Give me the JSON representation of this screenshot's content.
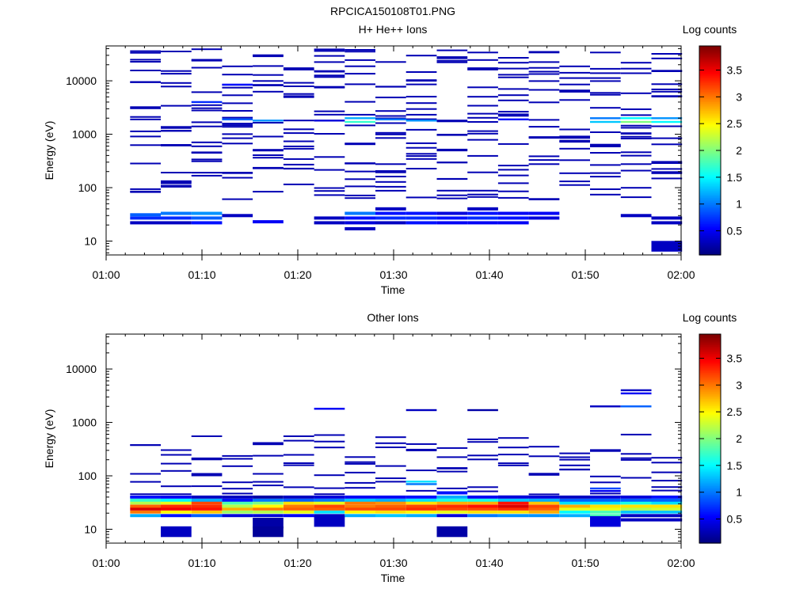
{
  "figure_title": "RPCICA150108T01.PNG",
  "chart_data": [
    {
      "type": "heatmap",
      "title": "H+ He++ Ions",
      "xlabel": "Time",
      "ylabel": "Energy (eV)",
      "xlim": [
        "01:00",
        "02:00"
      ],
      "x_ticks": [
        "01:00",
        "01:10",
        "01:20",
        "01:30",
        "01:40",
        "01:50",
        "02:00"
      ],
      "ylim": [
        5.5,
        45000
      ],
      "y_scale": "log",
      "y_ticks": [
        "10",
        "100",
        "1000",
        "10000"
      ],
      "colorbar": {
        "label": "Log counts",
        "range": [
          0.05,
          3.95
        ],
        "ticks": [
          "0.5",
          "1",
          "1.5",
          "2",
          "2.5",
          "3",
          "3.5"
        ],
        "colormap": "jet"
      },
      "time_columns_start_min": [
        2.5,
        5.7,
        8.9,
        12.1,
        15.3,
        18.5,
        21.7,
        24.9,
        28.1,
        31.3,
        34.5,
        37.7,
        40.9,
        44.1,
        47.3,
        50.5,
        53.7,
        56.9
      ],
      "column_width_min": 3.2,
      "cells": [
        [
          2.5,
          22,
          0.3
        ],
        [
          2.5,
          27,
          0.7
        ],
        [
          2.5,
          31,
          0.9
        ],
        [
          5.7,
          22,
          0.3
        ],
        [
          5.7,
          27,
          0.7
        ],
        [
          5.7,
          33,
          1.0
        ],
        [
          8.9,
          22,
          0.6
        ],
        [
          8.9,
          27,
          0.9
        ],
        [
          8.9,
          33,
          1.1
        ],
        [
          12.1,
          30,
          0.3
        ],
        [
          15.3,
          23,
          0.5
        ],
        [
          21.7,
          22,
          0.3
        ],
        [
          21.7,
          27,
          0.3
        ],
        [
          24.9,
          17,
          0.3
        ],
        [
          24.9,
          22,
          0.4
        ],
        [
          24.9,
          27,
          0.6
        ],
        [
          24.9,
          33,
          1.0
        ],
        [
          28.1,
          22,
          0.3
        ],
        [
          28.1,
          27,
          0.7
        ],
        [
          28.1,
          33,
          0.6
        ],
        [
          28.1,
          40,
          0.3
        ],
        [
          31.3,
          22,
          0.6
        ],
        [
          31.3,
          27,
          0.7
        ],
        [
          31.3,
          33,
          0.6
        ],
        [
          34.5,
          22,
          0.5
        ],
        [
          34.5,
          27,
          0.6
        ],
        [
          34.5,
          33,
          0.4
        ],
        [
          37.7,
          22,
          0.5
        ],
        [
          37.7,
          27,
          0.7
        ],
        [
          37.7,
          33,
          0.6
        ],
        [
          37.7,
          40,
          0.3
        ],
        [
          40.9,
          22,
          0.5
        ],
        [
          40.9,
          27,
          0.6
        ],
        [
          40.9,
          33,
          0.5
        ],
        [
          44.1,
          27,
          0.4
        ],
        [
          44.1,
          33,
          0.5
        ],
        [
          53.7,
          30,
          0.3
        ],
        [
          56.9,
          22,
          0.3
        ],
        [
          56.9,
          27,
          0.3
        ],
        [
          56.9,
          8,
          0.3
        ],
        [
          12.1,
          1900,
          0.9
        ],
        [
          15.3,
          1800,
          1.1
        ],
        [
          24.9,
          1700,
          1.7
        ],
        [
          24.9,
          2000,
          1.2
        ],
        [
          28.1,
          1900,
          1.0
        ],
        [
          31.3,
          1800,
          1.1
        ],
        [
          40.9,
          1900,
          0.6
        ],
        [
          50.5,
          1700,
          1.3
        ],
        [
          50.5,
          2000,
          1.0
        ],
        [
          53.7,
          1700,
          2.0
        ],
        [
          53.7,
          2000,
          1.5
        ],
        [
          56.9,
          1700,
          1.5
        ],
        [
          56.9,
          2000,
          1.1
        ],
        [
          8.9,
          4000,
          0.7
        ],
        [
          12.1,
          8500,
          0.6
        ],
        [
          21.7,
          1800,
          0.4
        ]
      ],
      "sparse_range_eV": [
        60,
        40000
      ],
      "sparse_value": 0.25
    },
    {
      "type": "heatmap",
      "title": "Other Ions",
      "xlabel": "Time",
      "ylabel": "Energy (eV)",
      "xlim": [
        "01:00",
        "02:00"
      ],
      "x_ticks": [
        "01:00",
        "01:10",
        "01:20",
        "01:30",
        "01:40",
        "01:50",
        "02:00"
      ],
      "ylim": [
        5.5,
        45000
      ],
      "y_scale": "log",
      "y_ticks": [
        "10",
        "100",
        "1000",
        "10000"
      ],
      "colorbar": {
        "label": "Log counts",
        "range": [
          0.05,
          3.95
        ],
        "ticks": [
          "0.5",
          "1",
          "1.5",
          "2",
          "2.5",
          "3",
          "3.5"
        ],
        "colormap": "jet"
      },
      "time_columns_start_min": [
        2.5,
        5.7,
        8.9,
        12.1,
        15.3,
        18.5,
        21.7,
        24.9,
        28.1,
        31.3,
        34.5,
        37.7,
        40.9,
        44.1,
        47.3,
        50.5,
        53.7,
        56.9
      ],
      "column_width_min": 3.2,
      "energy_bins_eV": [
        18,
        21,
        24,
        27,
        31,
        35,
        40
      ],
      "core_values": [
        [
          1.2,
          3.0,
          3.6,
          3.1,
          2.2,
          1.7,
          0.6
        ],
        [
          0.6,
          2.5,
          3.5,
          3.3,
          2.4,
          1.5,
          0.5
        ],
        [
          0.9,
          2.7,
          3.4,
          3.3,
          3.2,
          1.2,
          0.3
        ],
        [
          0.4,
          2.1,
          2.8,
          2.2,
          1.8,
          0.6,
          0.3
        ],
        [
          0.4,
          2.2,
          3.0,
          2.5,
          2.0,
          1.0,
          0.2
        ],
        [
          0.5,
          2.4,
          3.1,
          3.0,
          2.6,
          0.9,
          0.3
        ],
        [
          0.3,
          1.4,
          3.1,
          3.2,
          2.4,
          1.0,
          0.4
        ],
        [
          1.2,
          2.5,
          3.2,
          3.0,
          3.0,
          1.3,
          0.5
        ],
        [
          1.3,
          2.6,
          3.2,
          3.1,
          2.9,
          1.2,
          0.5
        ],
        [
          1.2,
          2.5,
          3.3,
          3.2,
          2.6,
          1.4,
          0.6
        ],
        [
          0.4,
          2.4,
          3.2,
          3.3,
          2.8,
          1.6,
          1.2
        ],
        [
          1.0,
          2.6,
          3.2,
          3.4,
          2.8,
          1.6,
          0.5
        ],
        [
          1.1,
          2.6,
          3.3,
          3.6,
          3.4,
          1.3,
          0.4
        ],
        [
          1.1,
          2.8,
          3.1,
          3.2,
          2.7,
          1.2,
          0.4
        ],
        [
          1.2,
          1.5,
          2.4,
          2.8,
          1.4,
          0.9,
          0.3
        ],
        [
          1.8,
          1.8,
          2.4,
          2.6,
          1.4,
          0.9,
          0.4
        ],
        [
          0.3,
          1.3,
          2.2,
          2.6,
          1.6,
          0.9,
          0.4
        ],
        [
          0.3,
          1.3,
          2.3,
          2.6,
          1.4,
          0.9,
          0.6
        ]
      ],
      "cells": [
        [
          5.7,
          9,
          0.3
        ],
        [
          15.3,
          13,
          0.2
        ],
        [
          15.3,
          9,
          0.15
        ],
        [
          21.7,
          14,
          0.3
        ],
        [
          34.5,
          9,
          0.2
        ],
        [
          50.5,
          14,
          0.4
        ],
        [
          53.7,
          15,
          0.3
        ],
        [
          56.9,
          15,
          0.3
        ],
        [
          31.3,
          70,
          1.0
        ],
        [
          31.3,
          78,
          1.4
        ],
        [
          34.5,
          48,
          0.6
        ],
        [
          50.5,
          58,
          0.8
        ],
        [
          50.5,
          52,
          0.5
        ],
        [
          50.5,
          2000,
          0.3
        ],
        [
          53.7,
          2000,
          0.9
        ],
        [
          53.7,
          3500,
          0.5
        ],
        [
          53.7,
          4000,
          0.3
        ],
        [
          21.7,
          1800,
          0.5
        ],
        [
          31.3,
          1700,
          0.3
        ],
        [
          37.7,
          1700,
          0.2
        ]
      ],
      "sparse_range_eV": [
        40,
        600
      ],
      "sparse_value": 0.25
    }
  ]
}
